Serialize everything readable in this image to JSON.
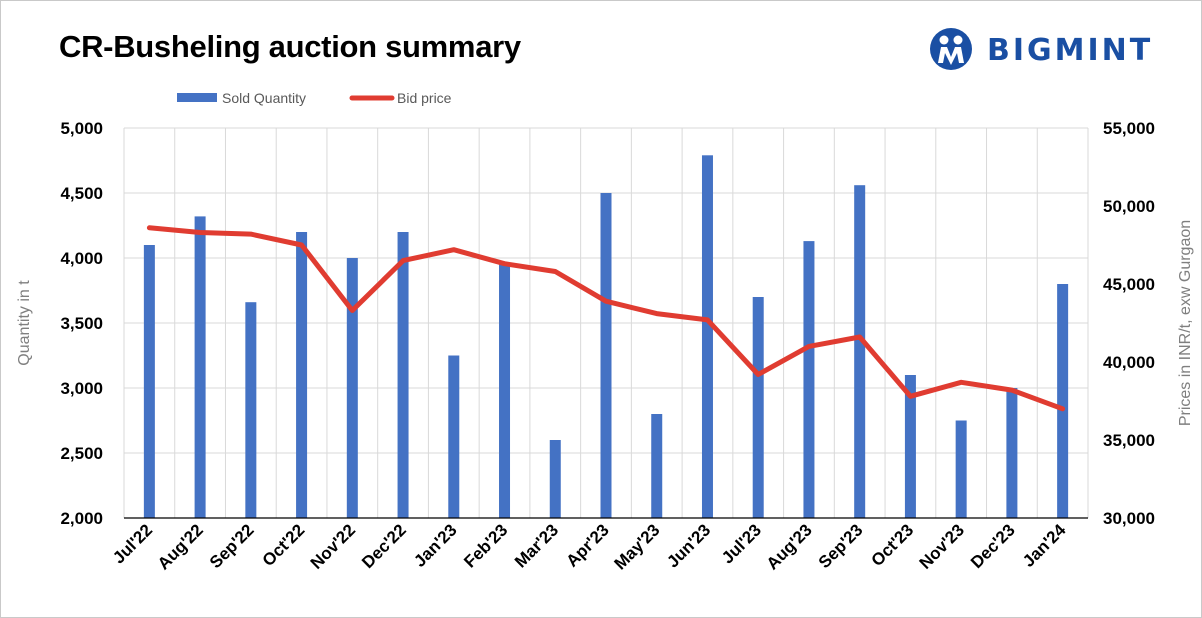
{
  "title": "CR-Busheling auction summary",
  "logo": {
    "text": "BIGMINT"
  },
  "colors": {
    "bar": "#4472c4",
    "line": "#e03c31",
    "grid": "#d9d9d9"
  },
  "chart_data": {
    "type": "bar",
    "categories": [
      "Jul'22",
      "Aug'22",
      "Sep'22",
      "Oct'22",
      "Nov'22",
      "Dec'22",
      "Jan'23",
      "Feb'23",
      "Mar'23",
      "Apr'23",
      "May'23",
      "Jun'23",
      "Jul'23",
      "Aug'23",
      "Sep'23",
      "Oct'23",
      "Nov'23",
      "Dec'23",
      "Jan'24"
    ],
    "series": [
      {
        "name": "Sold Quantity",
        "type": "bar",
        "axis": "left",
        "values": [
          4100,
          4320,
          3660,
          4200,
          4000,
          4200,
          3250,
          3950,
          2600,
          4500,
          2800,
          4790,
          3700,
          4130,
          4560,
          3100,
          2750,
          3000,
          3800
        ]
      },
      {
        "name": "Bid price",
        "type": "line",
        "axis": "right",
        "values": [
          48600,
          48300,
          48200,
          47500,
          43300,
          46500,
          47200,
          46300,
          45800,
          43900,
          43100,
          42700,
          39200,
          41000,
          41600,
          37800,
          38700,
          38200,
          37000
        ]
      }
    ],
    "ylabel": "Quantity in t",
    "y2label": "Prices in INR/t, exw Gurgaon",
    "ylim": [
      2000,
      5000
    ],
    "y2lim": [
      30000,
      55000
    ],
    "yticks": [
      "2,000",
      "2,500",
      "3,000",
      "3,500",
      "4,000",
      "4,500",
      "5,000"
    ],
    "y2ticks": [
      "30,000",
      "35,000",
      "40,000",
      "45,000",
      "50,000",
      "55,000"
    ],
    "grid": true,
    "legend": "top-left"
  }
}
